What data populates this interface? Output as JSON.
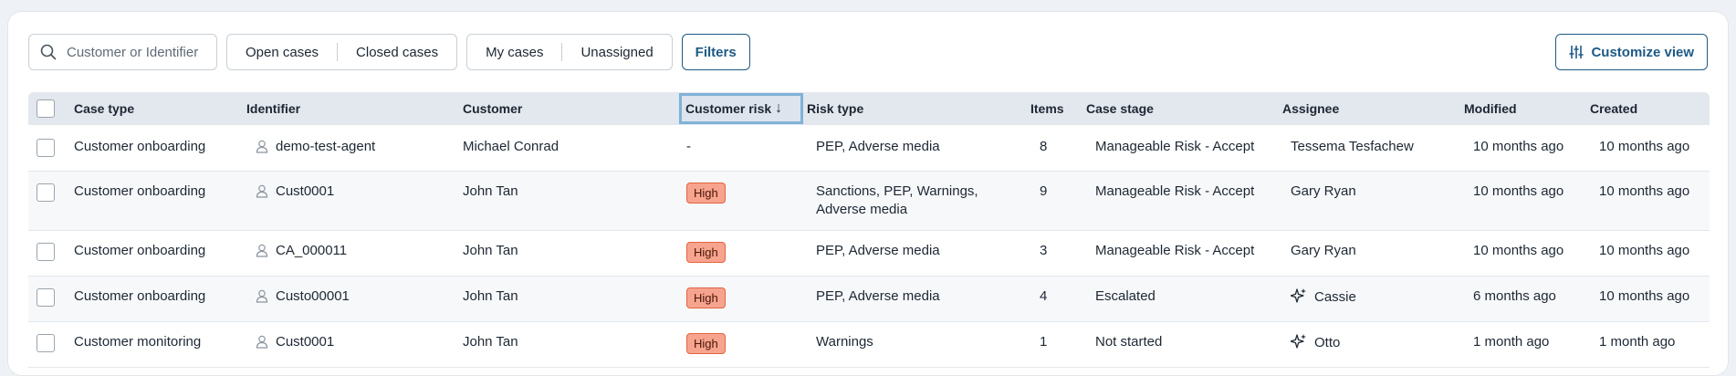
{
  "toolbar": {
    "search_placeholder": "Customer or Identifier",
    "open_cases": "Open cases",
    "closed_cases": "Closed cases",
    "my_cases": "My cases",
    "unassigned": "Unassigned",
    "filters": "Filters",
    "customize_view": "Customize view"
  },
  "table": {
    "headers": {
      "case_type": "Case type",
      "identifier": "Identifier",
      "customer": "Customer",
      "customer_risk": "Customer risk",
      "sort_arrow": "↓",
      "risk_type": "Risk type",
      "items": "Items",
      "case_stage": "Case stage",
      "assignee": "Assignee",
      "modified": "Modified",
      "created": "Created"
    },
    "rows": [
      {
        "case_type": "Customer onboarding",
        "identifier": "demo-test-agent",
        "customer": "Michael Conrad",
        "risk": "-",
        "risk_type": "PEP, Adverse media",
        "items": "8",
        "stage": "Manageable Risk - Accept",
        "assignee": "Tessema Tesfachew",
        "assignee_icon": "user-icon",
        "modified": "10 months ago",
        "created": "10 months ago"
      },
      {
        "case_type": "Customer onboarding",
        "identifier": "Cust0001",
        "customer": "John Tan",
        "risk": "High",
        "risk_type_line1": "Sanctions, PEP, Warnings,",
        "risk_type_line2": "Adverse media",
        "items": "9",
        "stage": "Manageable Risk - Accept",
        "assignee": "Gary Ryan",
        "assignee_icon": "user-icon",
        "modified": "10 months ago",
        "created": "10 months ago"
      },
      {
        "case_type": "Customer onboarding",
        "identifier": "CA_000011",
        "customer": "John Tan",
        "risk": "High",
        "risk_type": "PEP, Adverse media",
        "items": "3",
        "stage": "Manageable Risk - Accept",
        "assignee": "Gary Ryan",
        "assignee_icon": "user-icon",
        "modified": "10 months ago",
        "created": "10 months ago"
      },
      {
        "case_type": "Customer onboarding",
        "identifier": "Custo00001",
        "customer": "John Tan",
        "risk": "High",
        "risk_type": "PEP, Adverse media",
        "items": "4",
        "stage": "Escalated",
        "assignee": "Cassie",
        "assignee_icon": "sparkle-icon",
        "modified": "6 months ago",
        "created": "10 months ago"
      },
      {
        "case_type": "Customer monitoring",
        "identifier": "Cust0001",
        "customer": "John Tan",
        "risk": "High",
        "risk_type": "Warnings",
        "items": "1",
        "stage": "Not started",
        "assignee": "Otto",
        "assignee_icon": "sparkle-icon",
        "modified": "1 month ago",
        "created": "1 month ago"
      }
    ]
  },
  "colors": {
    "accent": "#1d5a85",
    "high_badge_bg": "#f7a48f",
    "header_bg": "#e3e7ee"
  }
}
